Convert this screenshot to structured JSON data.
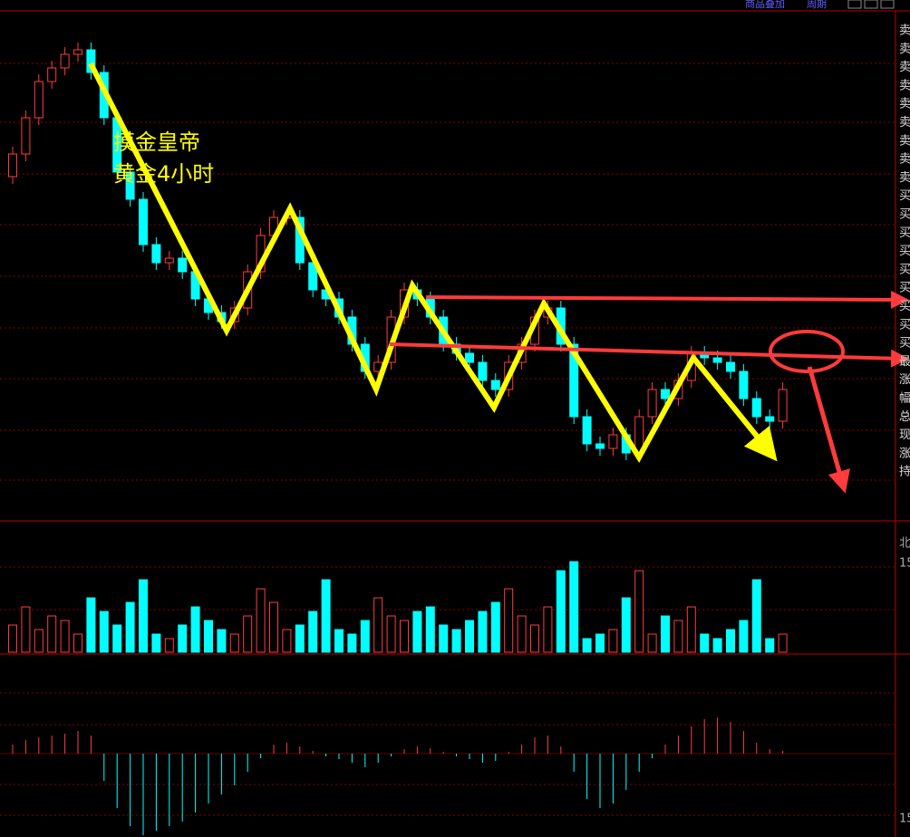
{
  "toolbar": {
    "overlay": "商品叠加",
    "period": "周期"
  },
  "annotation": {
    "line1": "摸金皇帝",
    "line2": "黄金4小时"
  },
  "side_labels": [
    "卖",
    "卖",
    "卖",
    "卖",
    "卖",
    "卖",
    "卖",
    "卖",
    "卖",
    "买",
    "买",
    "买",
    "买",
    "买",
    "买",
    "买",
    "买",
    "买",
    "最",
    "涨",
    "幅",
    "总",
    "现",
    "涨",
    "持",
    "北",
    "15",
    "15"
  ],
  "chart_data": {
    "type": "candlestick",
    "open": [
      380,
      405,
      445,
      485,
      500,
      515,
      520,
      495,
      445,
      385,
      355,
      305,
      285,
      290,
      275,
      245,
      230,
      220,
      235,
      275,
      315,
      335,
      335,
      285,
      255,
      245,
      225,
      195,
      165,
      175,
      225,
      255,
      245,
      225,
      195,
      185,
      175,
      155,
      145,
      175,
      195,
      225,
      235,
      195,
      115,
      85,
      80,
      95,
      75,
      115,
      145,
      135,
      155,
      185,
      180,
      175,
      165,
      135,
      115,
      110
    ],
    "high": [
      413,
      453,
      493,
      508,
      523,
      528,
      528,
      503,
      453,
      393,
      363,
      313,
      298,
      298,
      283,
      253,
      238,
      243,
      283,
      323,
      343,
      343,
      343,
      293,
      263,
      253,
      233,
      203,
      183,
      233,
      263,
      263,
      253,
      233,
      203,
      193,
      183,
      163,
      183,
      203,
      233,
      243,
      243,
      203,
      123,
      93,
      103,
      103,
      123,
      153,
      153,
      163,
      193,
      193,
      188,
      183,
      173,
      143,
      123,
      153
    ],
    "low": [
      372,
      397,
      437,
      477,
      492,
      507,
      487,
      437,
      377,
      347,
      297,
      277,
      277,
      267,
      237,
      222,
      212,
      212,
      227,
      267,
      307,
      327,
      277,
      247,
      237,
      217,
      187,
      157,
      157,
      167,
      217,
      237,
      217,
      187,
      177,
      167,
      147,
      137,
      137,
      167,
      187,
      217,
      187,
      107,
      77,
      72,
      72,
      67,
      67,
      107,
      127,
      127,
      147,
      172,
      167,
      157,
      127,
      107,
      102,
      102
    ],
    "close": [
      405,
      445,
      485,
      500,
      515,
      520,
      495,
      445,
      385,
      355,
      305,
      285,
      290,
      275,
      245,
      230,
      220,
      235,
      275,
      315,
      335,
      335,
      285,
      255,
      245,
      225,
      195,
      165,
      175,
      225,
      255,
      245,
      225,
      195,
      185,
      175,
      155,
      145,
      175,
      195,
      225,
      235,
      195,
      115,
      85,
      80,
      95,
      75,
      115,
      145,
      135,
      155,
      185,
      180,
      175,
      165,
      135,
      115,
      110,
      145
    ],
    "volume": [
      30,
      50,
      25,
      40,
      35,
      20,
      60,
      45,
      30,
      55,
      80,
      20,
      15,
      30,
      50,
      35,
      25,
      20,
      40,
      70,
      55,
      25,
      30,
      45,
      80,
      25,
      20,
      35,
      60,
      40,
      35,
      45,
      50,
      30,
      25,
      35,
      45,
      55,
      70,
      40,
      30,
      50,
      90,
      100,
      15,
      20,
      25,
      60,
      90,
      20,
      40,
      35,
      50,
      20,
      15,
      25,
      35,
      80,
      15,
      20
    ],
    "macd": [
      10,
      15,
      18,
      20,
      22,
      25,
      20,
      -30,
      -60,
      -80,
      -90,
      -85,
      -80,
      -75,
      -65,
      -55,
      -45,
      -35,
      -20,
      -5,
      10,
      12,
      8,
      3,
      -3,
      -6,
      -10,
      -15,
      -10,
      -3,
      5,
      8,
      6,
      2,
      -3,
      -6,
      -10,
      -8,
      2,
      10,
      18,
      20,
      8,
      -20,
      -50,
      -60,
      -55,
      -40,
      -20,
      -5,
      10,
      20,
      30,
      38,
      40,
      35,
      25,
      12,
      5,
      3
    ]
  }
}
